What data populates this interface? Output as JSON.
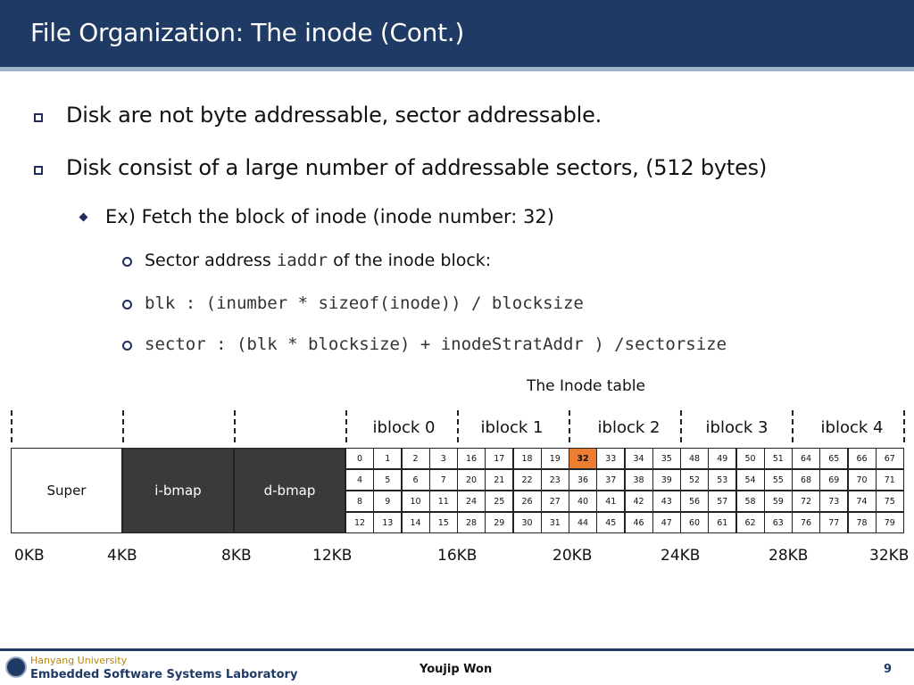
{
  "title": "File Organization: The inode (Cont.)",
  "bullets": [
    "Disk are not byte addressable, sector addressable.",
    "Disk consist of a large number of addressable sectors, (512 bytes)"
  ],
  "sub_bullet": "Ex) Fetch the block of inode (inode number: 32)",
  "sub_sub": {
    "sector_prefix": "Sector address",
    "sector_code": "iaddr",
    "sector_suffix": "of the inode block:",
    "blk_formula": "blk : (inumber * sizeof(inode)) / blocksize",
    "sector_formula": "sector : (blk * blocksize) + inodeStratAddr ) /sectorsize"
  },
  "diagram": {
    "table_title": "The Inode table",
    "iblock_labels": [
      "iblock 0",
      "iblock 1",
      "iblock 2",
      "iblock 3",
      "iblock 4"
    ],
    "regions": [
      "Super",
      "i-bmap",
      "d-bmap"
    ],
    "highlight_value": "32",
    "highlight_color": "#ed7d31",
    "grid": [
      [
        "0",
        "1",
        "2",
        "3",
        "16",
        "17",
        "18",
        "19",
        "32",
        "33",
        "34",
        "35",
        "48",
        "49",
        "50",
        "51",
        "64",
        "65",
        "66",
        "67"
      ],
      [
        "4",
        "5",
        "6",
        "7",
        "20",
        "21",
        "22",
        "23",
        "36",
        "37",
        "38",
        "39",
        "52",
        "53",
        "54",
        "55",
        "68",
        "69",
        "70",
        "71"
      ],
      [
        "8",
        "9",
        "10",
        "11",
        "24",
        "25",
        "26",
        "27",
        "40",
        "41",
        "42",
        "43",
        "56",
        "57",
        "58",
        "59",
        "72",
        "73",
        "74",
        "75"
      ],
      [
        "12",
        "13",
        "14",
        "15",
        "28",
        "29",
        "30",
        "31",
        "44",
        "45",
        "46",
        "47",
        "60",
        "61",
        "62",
        "63",
        "76",
        "77",
        "78",
        "79"
      ]
    ],
    "kb_labels": [
      "0KB",
      "4KB",
      "8KB",
      "12KB",
      "16KB",
      "20KB",
      "24KB",
      "28KB",
      "32KB"
    ]
  },
  "footer": {
    "university": "Hanyang University",
    "lab": "Embedded Software Systems Laboratory",
    "presenter": "Youjip Won",
    "page": "9"
  },
  "colors": {
    "title_bar": "#1f3a64",
    "dark_region": "#3a3a3a",
    "highlight": "#ed7d31"
  }
}
